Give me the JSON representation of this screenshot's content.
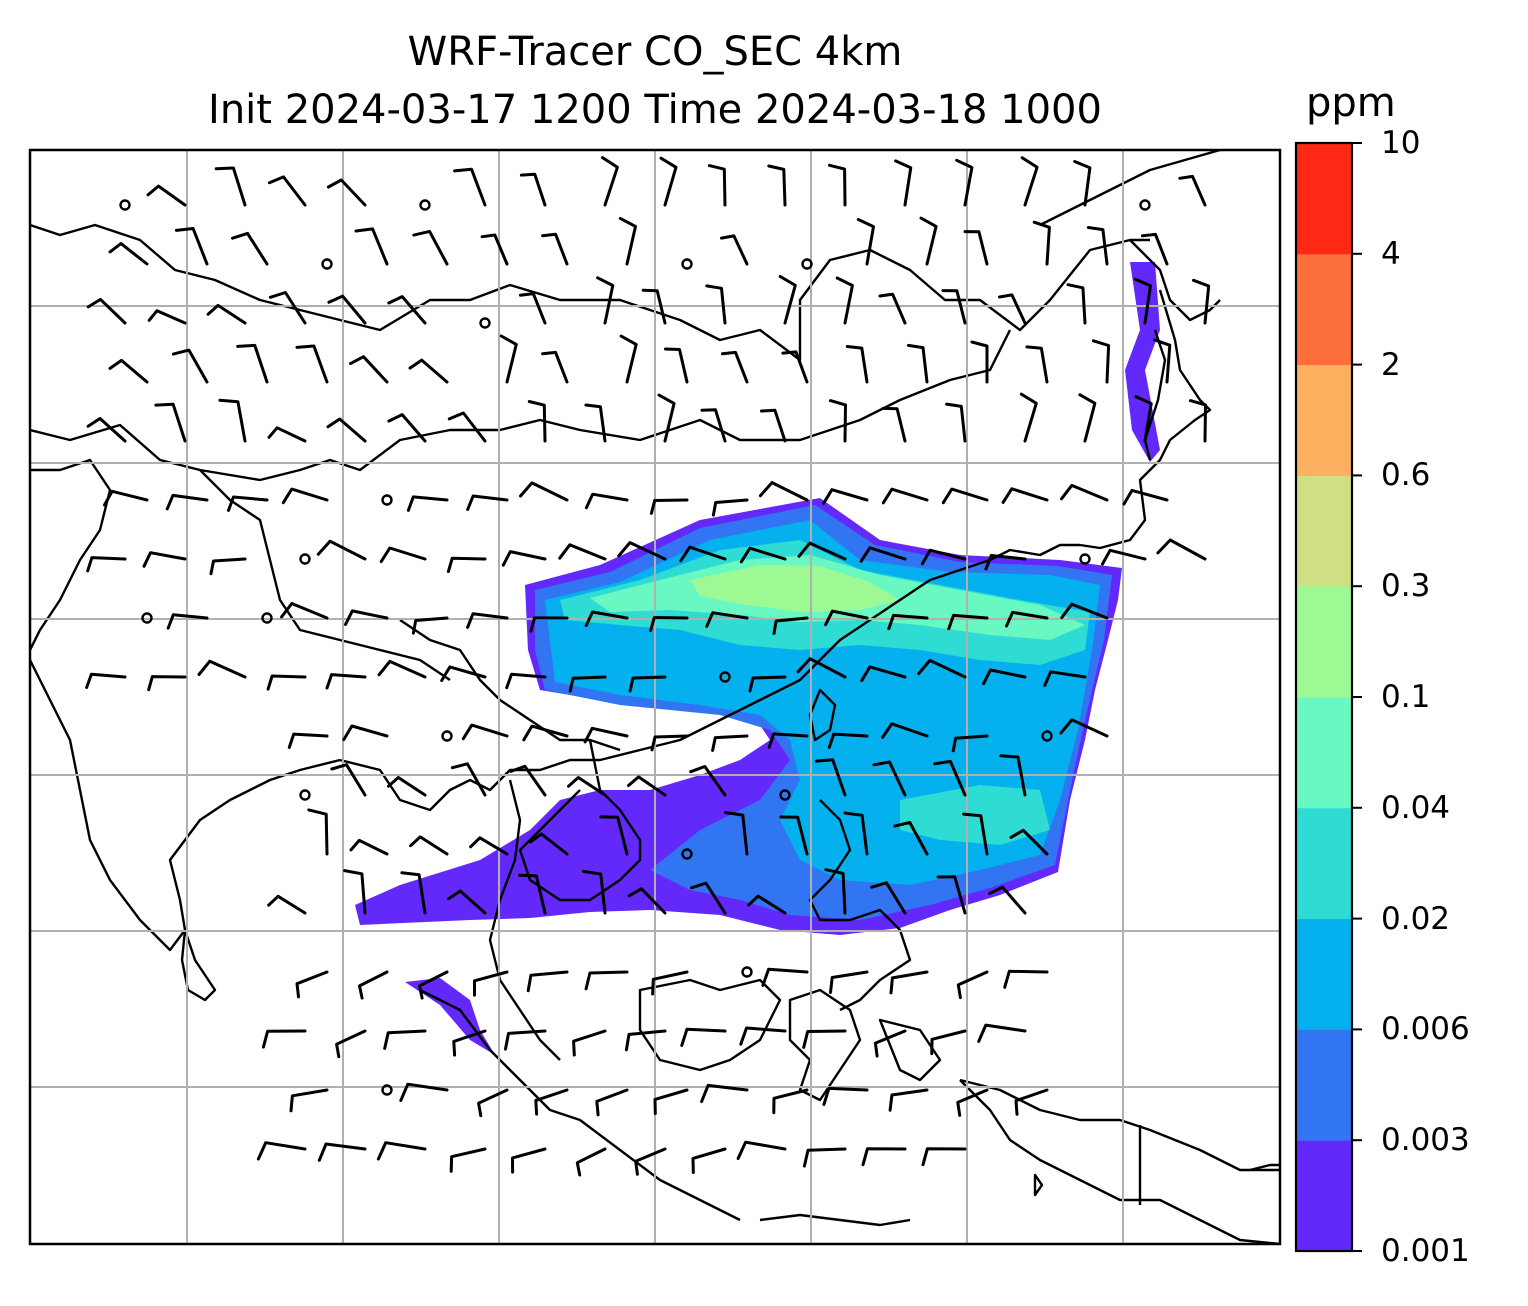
{
  "title": {
    "line1": "WRF-Tracer CO_SEC 4km",
    "line2": "Init 2024-03-17 1200 Time 2024-03-18 1000"
  },
  "colorbar": {
    "unit": "ppm",
    "levels": [
      "0.001",
      "0.003",
      "0.006",
      "0.02",
      "0.04",
      "0.1",
      "0.3",
      "0.6",
      "2",
      "4",
      "10"
    ],
    "colors": [
      "#6328fa",
      "#3275f2",
      "#04b0ee",
      "#2fdcd3",
      "#6af8c2",
      "#9df993",
      "#cee083",
      "#fdb060",
      "#fd6f3a",
      "#fd2915"
    ]
  },
  "map": {
    "projection": "plate carree (gridlines, no labels)",
    "overlay": "wind barbs",
    "field": "CO_SEC tracer concentration"
  }
}
